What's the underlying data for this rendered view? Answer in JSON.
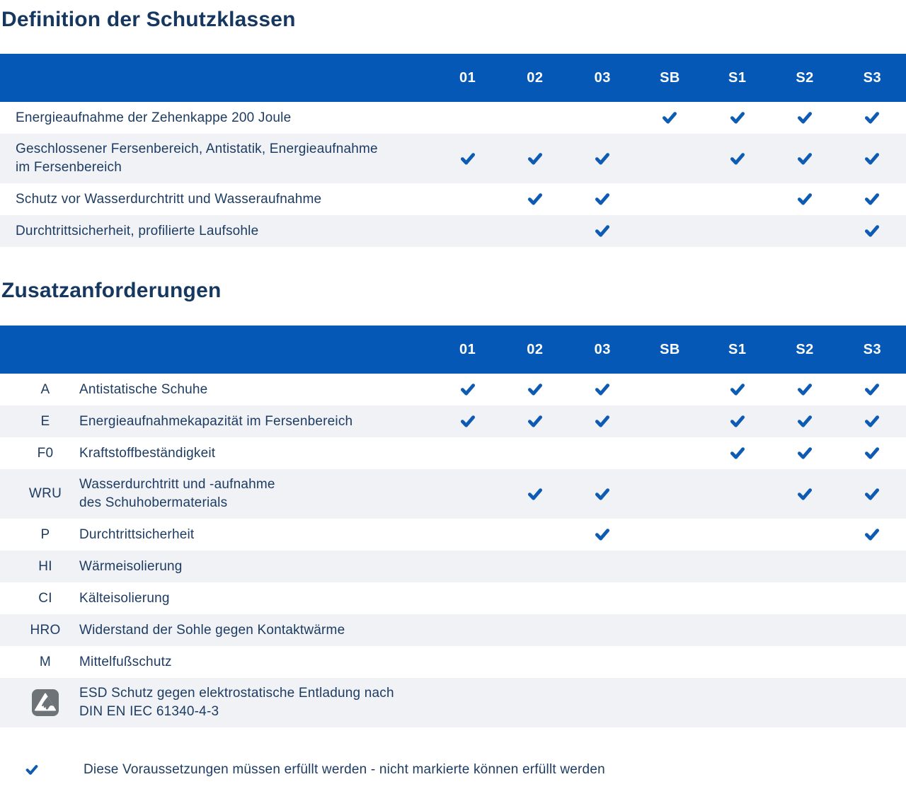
{
  "colors": {
    "header_bg": "#0558B6",
    "header_text": "#FFFFFF",
    "check": "#0E5BB4",
    "row_alt_bg": "#F0F2F6",
    "title_text": "#16375F",
    "body_text": "#1E3C62",
    "esd_icon_bg": "#6E7378"
  },
  "section1": {
    "title": "Definition der Schutzklassen"
  },
  "section2": {
    "title": "Zusatzanforderungen"
  },
  "columns": [
    "01",
    "02",
    "03",
    "SB",
    "S1",
    "S2",
    "S3"
  ],
  "table1": {
    "rows": [
      {
        "label": "Energieaufnahme der Zehenkappe 200 Joule",
        "checks": [
          "SB",
          "S1",
          "S2",
          "S3"
        ]
      },
      {
        "label": "Geschlossener Fersenbereich, Antistatik, Energieaufnahme\nim Fersenbereich",
        "checks": [
          "01",
          "02",
          "03",
          "S1",
          "S2",
          "S3"
        ]
      },
      {
        "label": "Schutz vor Wasserdurchtritt und Wasseraufnahme",
        "checks": [
          "02",
          "03",
          "S2",
          "S3"
        ]
      },
      {
        "label": "Durchtrittsicherheit, profilierte Laufsohle",
        "checks": [
          "03",
          "S3"
        ]
      }
    ]
  },
  "table2": {
    "rows": [
      {
        "code": "A",
        "label": "Antistatische Schuhe",
        "checks": [
          "01",
          "02",
          "03",
          "S1",
          "S2",
          "S3"
        ]
      },
      {
        "code": "E",
        "label": "Energieaufnahmekapazität im Fersenbereich",
        "checks": [
          "01",
          "02",
          "03",
          "S1",
          "S2",
          "S3"
        ]
      },
      {
        "code": "F0",
        "label": "Kraftstoffbeständigkeit",
        "checks": [
          "S1",
          "S2",
          "S3"
        ]
      },
      {
        "code": "WRU",
        "label": "Wasserdurchtritt und -aufnahme\ndes Schuhobermaterials",
        "checks": [
          "02",
          "03",
          "S2",
          "S3"
        ]
      },
      {
        "code": "P",
        "label": "Durchtrittsicherheit",
        "checks": [
          "03",
          "S3"
        ]
      },
      {
        "code": "HI",
        "label": "Wärmeisolierung",
        "checks": []
      },
      {
        "code": "CI",
        "label": "Kälteisolierung",
        "checks": []
      },
      {
        "code": "HRO",
        "label": "Widerstand der Sohle gegen Kontaktwärme",
        "checks": []
      },
      {
        "code": "M",
        "label": "Mittelfußschutz",
        "checks": []
      },
      {
        "code": "",
        "icon": "esd-icon",
        "label": "ESD Schutz gegen elektrostatische Entladung nach\nDIN EN IEC 61340-4-3",
        "checks": []
      }
    ]
  },
  "legend": {
    "text": "Diese Voraussetzungen müssen erfüllt werden - nicht markierte können erfüllt werden"
  }
}
